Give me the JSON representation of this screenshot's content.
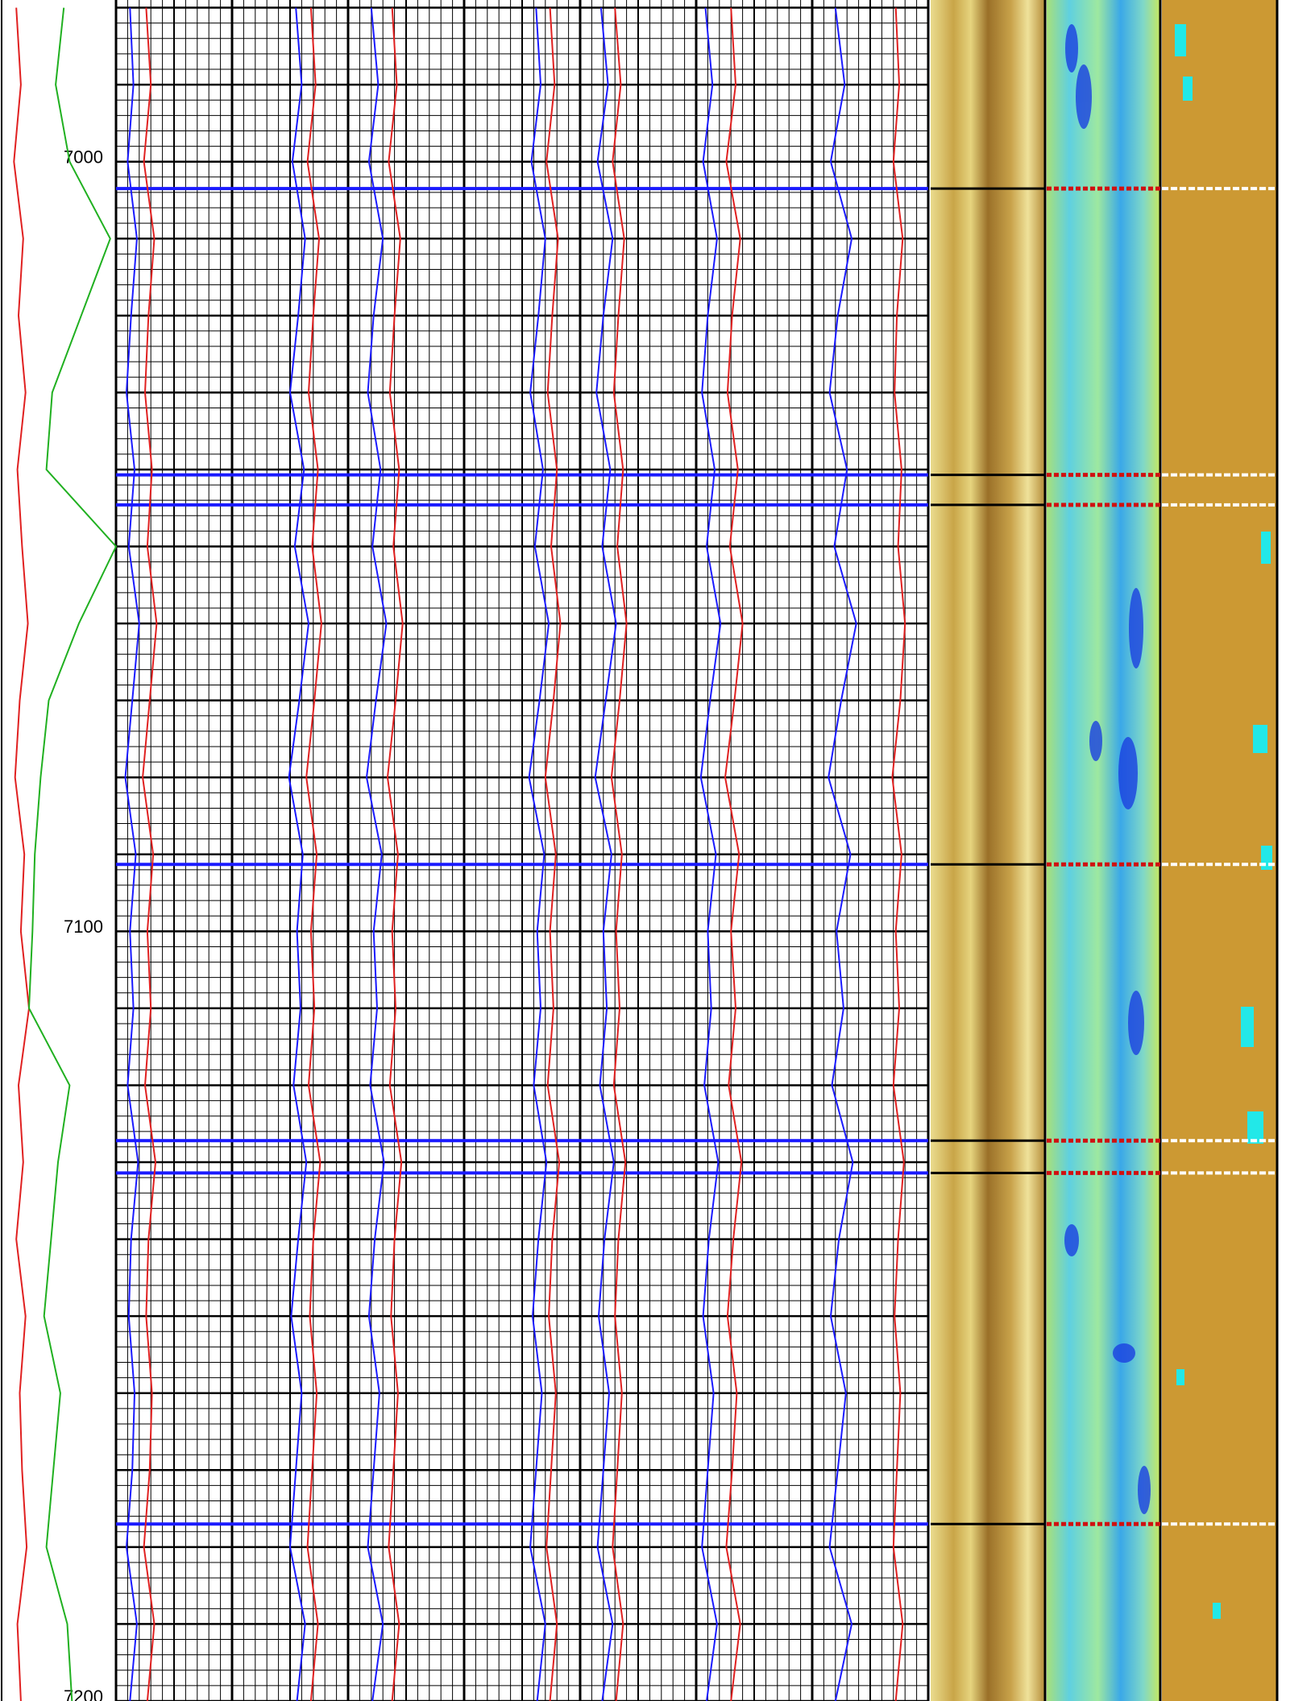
{
  "chart_data": {
    "type": "well-log",
    "x": [
      6980,
      6990,
      7000,
      7010,
      7020,
      7030,
      7040,
      7050,
      7060,
      7070,
      7080,
      7090,
      7100,
      7110,
      7120,
      7130,
      7140,
      7150,
      7160,
      7170,
      7180,
      7190,
      7200
    ],
    "ylim": [
      6979,
      7200
    ],
    "yticks": [
      7000,
      7100,
      7200
    ],
    "grid_step": 2,
    "major_grid_step": 10,
    "beds": [
      7003.5,
      7040.7,
      7044.6,
      7091.3,
      7127.2,
      7131.4,
      7177
    ],
    "tracks": [
      {
        "grid": false,
        "xlim": [
          0,
          100
        ],
        "series": [
          {
            "color": "#e02020",
            "values": [
              14,
              18,
              12,
              20,
              16,
              22,
              15,
              19,
              24,
              17,
              13,
              21,
              18,
              25,
              16,
              20,
              14,
              22,
              17,
              19,
              23,
              15,
              18
            ]
          },
          {
            "color": "#20b020",
            "values": [
              55,
              48,
              60,
              95,
              70,
              45,
              40,
              100,
              68,
              42,
              35,
              30,
              28,
              25,
              60,
              50,
              44,
              38,
              52,
              46,
              40,
              58,
              62
            ]
          }
        ]
      },
      {
        "grid": true,
        "xlim": [
          0,
          100
        ],
        "series": [
          {
            "color": "#1a1aff",
            "values": [
              12,
              15,
              10,
              18,
              13,
              9,
              16,
              11,
              20,
              14,
              8,
              17,
              12,
              15,
              10,
              19,
              13,
              11,
              16,
              14,
              9,
              18,
              12
            ]
          },
          {
            "color": "#e02020",
            "values": [
              26,
              30,
              24,
              33,
              28,
              25,
              31,
              27,
              35,
              29,
              23,
              32,
              27,
              30,
              25,
              34,
              28,
              26,
              31,
              29,
              24,
              33,
              27
            ]
          }
        ]
      },
      {
        "grid": true,
        "xlim": [
          0,
          100
        ],
        "series": [
          {
            "color": "#1a1aff",
            "values": [
              55,
              60,
              52,
              63,
              57,
              50,
              62,
              54,
              66,
              58,
              49,
              61,
              56,
              59,
              53,
              64,
              57,
              51,
              60,
              55,
              50,
              63,
              56
            ]
          },
          {
            "color": "#e02020",
            "values": [
              68,
              72,
              65,
              75,
              70,
              66,
              74,
              69,
              77,
              71,
              64,
              73,
              68,
              71,
              66,
              76,
              70,
              67,
              73,
              69,
              65,
              74,
              68
            ]
          }
        ]
      },
      {
        "grid": true,
        "xlim": [
          0,
          100
        ],
        "series": [
          {
            "color": "#1a1aff",
            "values": [
              20,
              26,
              18,
              30,
              22,
              17,
              28,
              21,
              33,
              24,
              16,
              29,
              22,
              25,
              19,
              31,
              23,
              18,
              27,
              22,
              17,
              30,
              21
            ]
          },
          {
            "color": "#e02020",
            "values": [
              38,
              42,
              35,
              45,
              40,
              36,
              44,
              39,
              47,
              41,
              34,
              43,
              38,
              41,
              36,
              46,
              40,
              37,
              43,
              39,
              35,
              44,
              38
            ]
          }
        ]
      },
      {
        "grid": true,
        "xlim": [
          0,
          100
        ],
        "series": [
          {
            "color": "#1a1aff",
            "values": [
              62,
              66,
              58,
              70,
              64,
              57,
              68,
              61,
              73,
              65,
              56,
              69,
              63,
              66,
              60,
              71,
              64,
              59,
              67,
              62,
              57,
              70,
              63
            ]
          },
          {
            "color": "#e02020",
            "values": [
              74,
              78,
              71,
              81,
              76,
              72,
              80,
              75,
              83,
              77,
              70,
              79,
              74,
              77,
              72,
              82,
              76,
              73,
              79,
              75,
              71,
              80,
              74
            ]
          }
        ]
      },
      {
        "grid": true,
        "xlim": [
          0,
          100
        ],
        "series": [
          {
            "color": "#1a1aff",
            "values": [
              18,
              24,
              15,
              28,
              20,
              14,
              26,
              19,
              31,
              22,
              13,
              27,
              20,
              23,
              17,
              29,
              21,
              16,
              25,
              20,
              15,
              28,
              19
            ]
          },
          {
            "color": "#e02020",
            "values": [
              30,
              35,
              28,
              38,
              33,
              29,
              37,
              32,
              40,
              34,
              27,
              36,
              31,
              34,
              29,
              39,
              33,
              30,
              36,
              32,
              28,
              37,
              31
            ]
          }
        ]
      },
      {
        "grid": true,
        "xlim": [
          0,
          100
        ],
        "series": [
          {
            "color": "#1a1aff",
            "values": [
              8,
              14,
              6,
              18,
              10,
              5,
              16,
              9,
              21,
              12,
              4,
              17,
              10,
              13,
              7,
              19,
              11,
              6,
              15,
              10,
              5,
              18,
              9
            ]
          },
          {
            "color": "#e02020",
            "values": [
              30,
              34,
              26,
              38,
              31,
              27,
              36,
              29,
              40,
              33,
              25,
              37,
              30,
              34,
              28,
              39,
              32,
              27,
              35,
              31,
              26,
              38,
              30
            ]
          }
        ]
      },
      {
        "grid": true,
        "xlim": [
          0,
          100
        ],
        "series": [
          {
            "color": "#1a1aff",
            "values": [
              20,
              28,
              16,
              34,
              22,
              15,
              30,
              19,
              38,
              25,
              14,
              33,
              21,
              27,
              17,
              35,
              23,
              16,
              29,
              22,
              15,
              34,
              20
            ]
          },
          {
            "color": "#e02020",
            "values": [
              72,
              75,
              70,
              78,
              73,
              71,
              77,
              74,
              80,
              76,
              69,
              77,
              72,
              75,
              70,
              79,
              74,
              71,
              76,
              73,
              70,
              78,
              72
            ]
          }
        ]
      }
    ]
  }
}
